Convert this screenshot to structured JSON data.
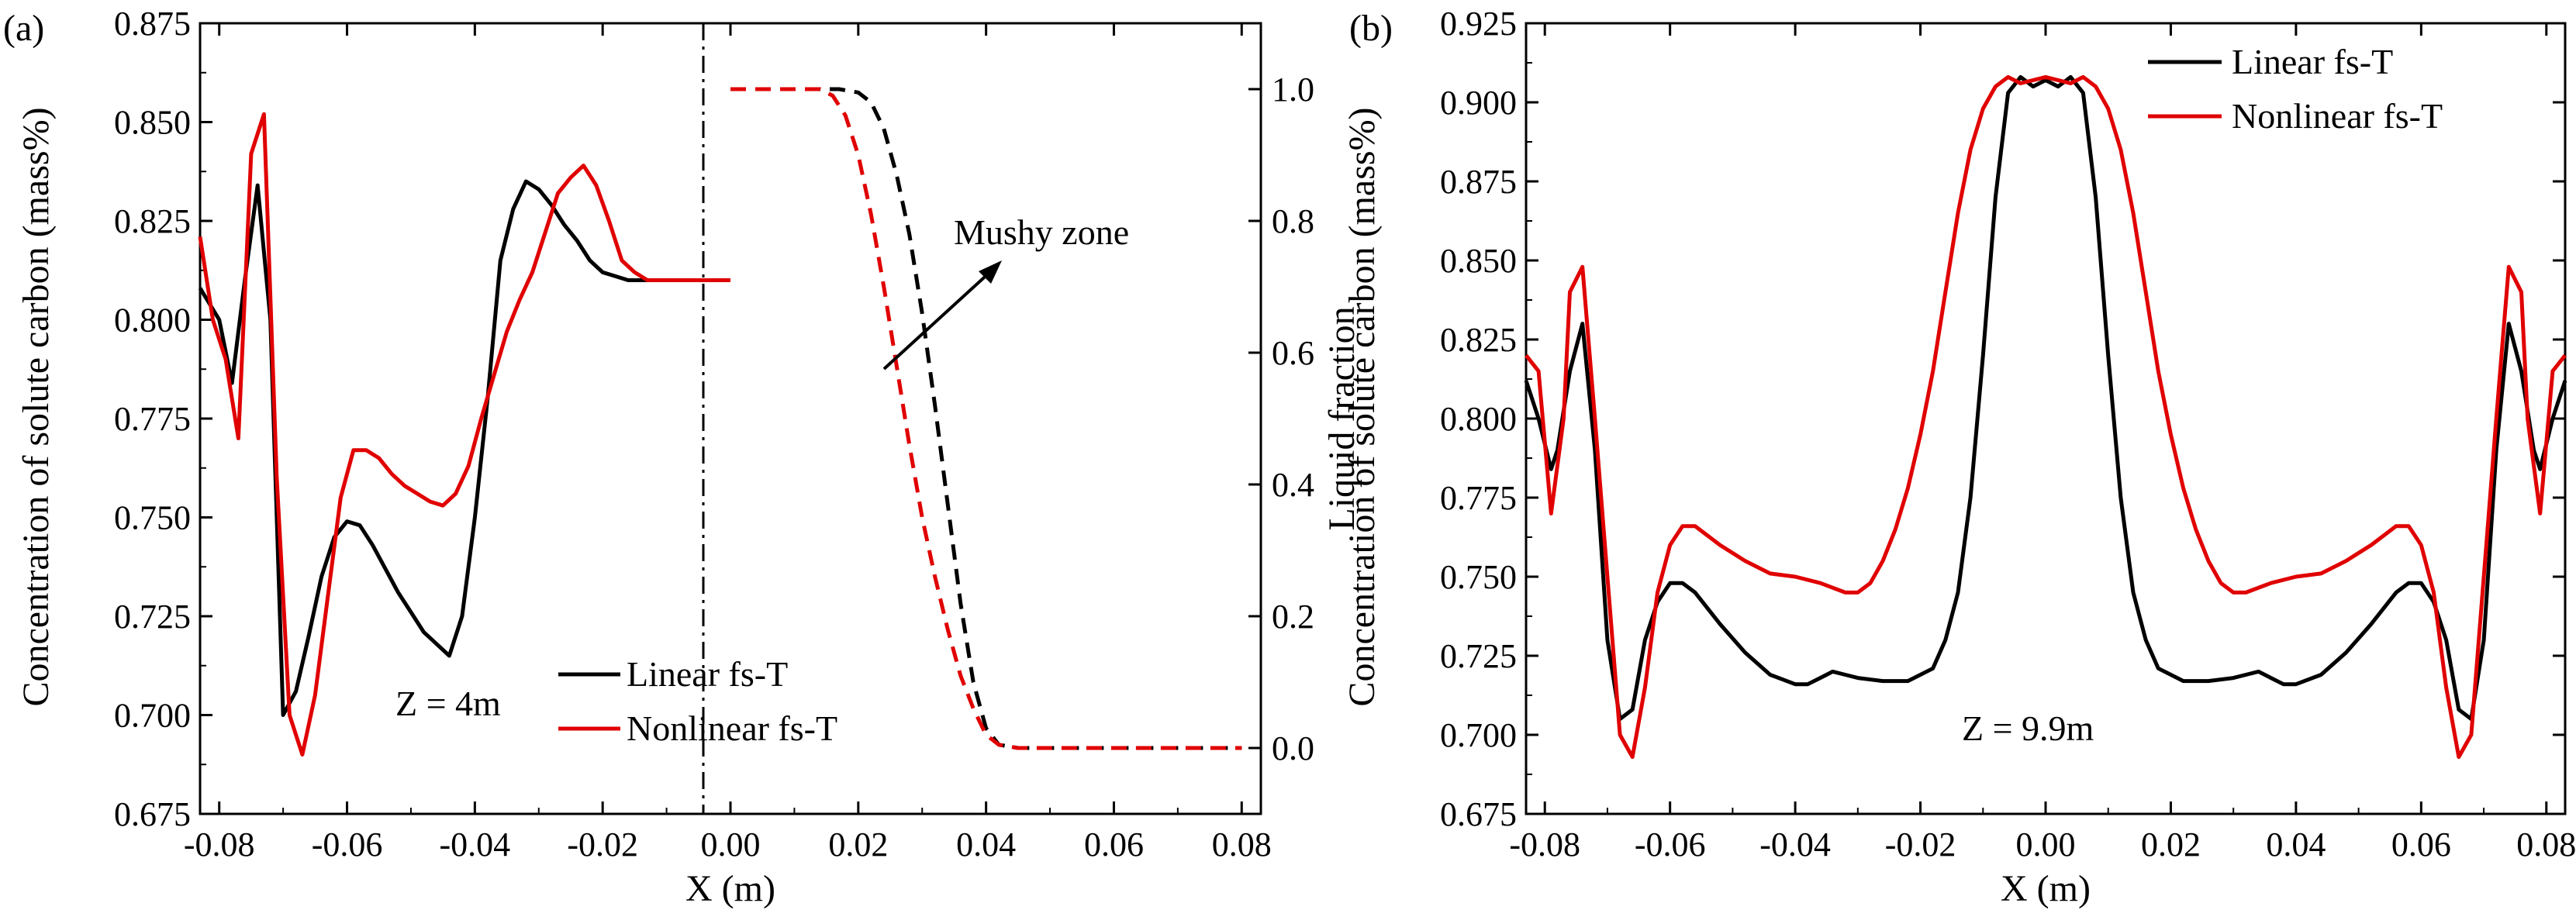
{
  "figure": {
    "panel_a_label": "(a)",
    "panel_b_label": "(b)"
  },
  "chart_data": [
    {
      "type": "line",
      "panel": "(a)",
      "xlabel": "X (m)",
      "ylabel": "Concentration of solute carbon (mass%)",
      "y2label": "Liquid fraction",
      "xlim": [
        -0.083,
        0.083
      ],
      "ylim": [
        0.675,
        0.875
      ],
      "y2lim": [
        -0.1,
        1.1
      ],
      "xticks": [
        "-0.08",
        "-0.06",
        "-0.04",
        "-0.02",
        "0.00",
        "0.02",
        "0.04",
        "0.06",
        "0.08"
      ],
      "yticks": [
        "0.675",
        "0.700",
        "0.725",
        "0.750",
        "0.775",
        "0.800",
        "0.825",
        "0.850",
        "0.875"
      ],
      "y2ticks": [
        "0.0",
        "0.2",
        "0.4",
        "0.6",
        "0.8",
        "1.0"
      ],
      "annotations": {
        "zone": "Z = 4m",
        "mushy": "Mushy zone"
      },
      "legend_position": "bottom-center",
      "series": [
        {
          "name": "Linear fs-T",
          "color": "#000000",
          "dash": false,
          "axis": "left",
          "x": [
            -0.083,
            -0.08,
            -0.078,
            -0.076,
            -0.074,
            -0.072,
            -0.07,
            -0.068,
            -0.066,
            -0.064,
            -0.062,
            -0.06,
            -0.058,
            -0.056,
            -0.054,
            -0.052,
            -0.05,
            -0.048,
            -0.046,
            -0.044,
            -0.042,
            -0.04,
            -0.038,
            -0.036,
            -0.034,
            -0.032,
            -0.03,
            -0.028,
            -0.026,
            -0.024,
            -0.022,
            -0.02,
            -0.018,
            -0.016,
            -0.014,
            -0.012,
            -0.01,
            -0.005,
            0.0
          ],
          "y": [
            0.808,
            0.8,
            0.784,
            0.81,
            0.834,
            0.8,
            0.7,
            0.706,
            0.72,
            0.735,
            0.745,
            0.749,
            0.748,
            0.743,
            0.737,
            0.731,
            0.726,
            0.721,
            0.718,
            0.715,
            0.725,
            0.75,
            0.78,
            0.815,
            0.828,
            0.835,
            0.833,
            0.829,
            0.824,
            0.82,
            0.815,
            0.812,
            0.811,
            0.81,
            0.81,
            0.81,
            0.81,
            0.81,
            0.81
          ]
        },
        {
          "name": "Nonlinear fs-T",
          "color": "#e00000",
          "dash": false,
          "axis": "left",
          "x": [
            -0.083,
            -0.081,
            -0.079,
            -0.077,
            -0.075,
            -0.073,
            -0.071,
            -0.069,
            -0.067,
            -0.065,
            -0.063,
            -0.061,
            -0.059,
            -0.057,
            -0.055,
            -0.053,
            -0.051,
            -0.049,
            -0.047,
            -0.045,
            -0.043,
            -0.041,
            -0.039,
            -0.037,
            -0.035,
            -0.033,
            -0.031,
            -0.029,
            -0.027,
            -0.025,
            -0.023,
            -0.021,
            -0.019,
            -0.017,
            -0.015,
            -0.013,
            -0.01,
            -0.005,
            0.0
          ],
          "y": [
            0.821,
            0.8,
            0.79,
            0.77,
            0.842,
            0.852,
            0.76,
            0.7,
            0.69,
            0.705,
            0.73,
            0.755,
            0.767,
            0.767,
            0.765,
            0.761,
            0.758,
            0.756,
            0.754,
            0.753,
            0.756,
            0.763,
            0.775,
            0.786,
            0.797,
            0.805,
            0.812,
            0.822,
            0.832,
            0.836,
            0.839,
            0.834,
            0.825,
            0.815,
            0.812,
            0.81,
            0.81,
            0.81,
            0.81
          ]
        },
        {
          "name": "Linear fs-T",
          "color": "#000000",
          "dash": true,
          "axis": "right",
          "x": [
            0.0,
            0.01,
            0.017,
            0.02,
            0.022,
            0.024,
            0.026,
            0.028,
            0.03,
            0.032,
            0.034,
            0.036,
            0.038,
            0.04,
            0.042,
            0.045,
            0.06,
            0.08
          ],
          "y": [
            1.0,
            1.0,
            1.0,
            0.995,
            0.98,
            0.94,
            0.87,
            0.78,
            0.66,
            0.52,
            0.37,
            0.22,
            0.1,
            0.03,
            0.005,
            0.0,
            0.0,
            0.0
          ]
        },
        {
          "name": "Nonlinear fs-T",
          "color": "#e00000",
          "dash": true,
          "axis": "right",
          "x": [
            0.0,
            0.008,
            0.014,
            0.016,
            0.018,
            0.02,
            0.022,
            0.024,
            0.026,
            0.028,
            0.03,
            0.032,
            0.034,
            0.036,
            0.038,
            0.04,
            0.042,
            0.045,
            0.06,
            0.08
          ],
          "y": [
            1.0,
            1.0,
            1.0,
            0.99,
            0.96,
            0.9,
            0.81,
            0.7,
            0.58,
            0.46,
            0.35,
            0.26,
            0.18,
            0.11,
            0.06,
            0.02,
            0.005,
            0.0,
            0.0,
            0.0
          ]
        }
      ]
    },
    {
      "type": "line",
      "panel": "(b)",
      "xlabel": "X (m)",
      "ylabel": "Concentration of solute carbon (mass%)",
      "xlim": [
        -0.083,
        0.083
      ],
      "ylim": [
        0.675,
        0.925
      ],
      "xticks": [
        "-0.08",
        "-0.06",
        "-0.04",
        "-0.02",
        "0.00",
        "0.02",
        "0.04",
        "0.06",
        "0.08"
      ],
      "yticks": [
        "0.675",
        "0.700",
        "0.725",
        "0.750",
        "0.775",
        "0.800",
        "0.825",
        "0.850",
        "0.875",
        "0.900",
        "0.925"
      ],
      "annotations": {
        "zone": "Z = 9.9m"
      },
      "legend_position": "top-center",
      "series": [
        {
          "name": "Linear fs-T",
          "color": "#000000",
          "axis": "left",
          "x": [
            -0.083,
            -0.081,
            -0.079,
            -0.078,
            -0.076,
            -0.074,
            -0.072,
            -0.07,
            -0.068,
            -0.066,
            -0.064,
            -0.062,
            -0.06,
            -0.058,
            -0.056,
            -0.052,
            -0.048,
            -0.044,
            -0.04,
            -0.038,
            -0.036,
            -0.034,
            -0.032,
            -0.03,
            -0.026,
            -0.022,
            -0.018,
            -0.016,
            -0.014,
            -0.012,
            -0.01,
            -0.008,
            -0.006,
            -0.004,
            -0.002,
            0.0,
            0.002,
            0.004,
            0.006,
            0.008,
            0.01,
            0.012,
            0.014,
            0.016,
            0.018,
            0.022,
            0.026,
            0.03,
            0.032,
            0.034,
            0.036,
            0.038,
            0.04,
            0.044,
            0.048,
            0.052,
            0.056,
            0.058,
            0.06,
            0.062,
            0.064,
            0.066,
            0.068,
            0.07,
            0.072,
            0.074,
            0.076,
            0.078,
            0.079,
            0.081,
            0.083
          ],
          "y": [
            0.812,
            0.8,
            0.784,
            0.79,
            0.815,
            0.83,
            0.79,
            0.73,
            0.705,
            0.708,
            0.73,
            0.742,
            0.748,
            0.748,
            0.745,
            0.735,
            0.726,
            0.719,
            0.716,
            0.716,
            0.718,
            0.72,
            0.719,
            0.718,
            0.717,
            0.717,
            0.721,
            0.73,
            0.745,
            0.775,
            0.82,
            0.87,
            0.903,
            0.908,
            0.905,
            0.907,
            0.905,
            0.908,
            0.903,
            0.87,
            0.82,
            0.775,
            0.745,
            0.73,
            0.721,
            0.717,
            0.717,
            0.718,
            0.719,
            0.72,
            0.718,
            0.716,
            0.716,
            0.719,
            0.726,
            0.735,
            0.745,
            0.748,
            0.748,
            0.742,
            0.73,
            0.708,
            0.705,
            0.73,
            0.79,
            0.83,
            0.815,
            0.79,
            0.784,
            0.8,
            0.812
          ]
        },
        {
          "name": "Nonlinear fs-T",
          "color": "#e00000",
          "axis": "left",
          "x": [
            -0.083,
            -0.081,
            -0.079,
            -0.077,
            -0.076,
            -0.074,
            -0.072,
            -0.07,
            -0.068,
            -0.066,
            -0.064,
            -0.062,
            -0.06,
            -0.058,
            -0.056,
            -0.052,
            -0.048,
            -0.044,
            -0.04,
            -0.036,
            -0.032,
            -0.03,
            -0.028,
            -0.026,
            -0.024,
            -0.022,
            -0.02,
            -0.018,
            -0.016,
            -0.014,
            -0.012,
            -0.01,
            -0.008,
            -0.006,
            -0.004,
            -0.002,
            0.0,
            0.002,
            0.004,
            0.006,
            0.008,
            0.01,
            0.012,
            0.014,
            0.016,
            0.018,
            0.02,
            0.022,
            0.024,
            0.026,
            0.028,
            0.03,
            0.032,
            0.036,
            0.04,
            0.044,
            0.048,
            0.052,
            0.056,
            0.058,
            0.06,
            0.062,
            0.064,
            0.066,
            0.068,
            0.07,
            0.072,
            0.074,
            0.076,
            0.077,
            0.079,
            0.081,
            0.083
          ],
          "y": [
            0.82,
            0.815,
            0.77,
            0.8,
            0.84,
            0.848,
            0.8,
            0.75,
            0.7,
            0.693,
            0.715,
            0.745,
            0.76,
            0.766,
            0.766,
            0.76,
            0.755,
            0.751,
            0.75,
            0.748,
            0.745,
            0.745,
            0.748,
            0.755,
            0.765,
            0.778,
            0.795,
            0.815,
            0.84,
            0.865,
            0.885,
            0.898,
            0.905,
            0.908,
            0.906,
            0.907,
            0.908,
            0.907,
            0.906,
            0.908,
            0.905,
            0.898,
            0.885,
            0.865,
            0.84,
            0.815,
            0.795,
            0.778,
            0.765,
            0.755,
            0.748,
            0.745,
            0.745,
            0.748,
            0.75,
            0.751,
            0.755,
            0.76,
            0.766,
            0.766,
            0.76,
            0.745,
            0.715,
            0.693,
            0.7,
            0.75,
            0.8,
            0.848,
            0.84,
            0.8,
            0.77,
            0.815,
            0.82
          ]
        }
      ]
    }
  ]
}
